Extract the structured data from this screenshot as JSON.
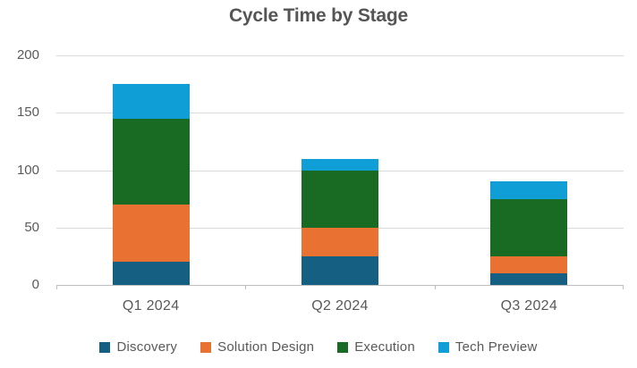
{
  "chart_data": {
    "type": "bar",
    "stacked": true,
    "title": "Cycle Time by Stage",
    "categories": [
      "Q1 2024",
      "Q2 2024",
      "Q3 2024"
    ],
    "series": [
      {
        "name": "Discovery",
        "color": "#156082",
        "values": [
          20,
          25,
          10
        ]
      },
      {
        "name": "Solution Design",
        "color": "#E97132",
        "values": [
          50,
          25,
          15
        ]
      },
      {
        "name": "Execution",
        "color": "#196B24",
        "values": [
          75,
          50,
          50
        ]
      },
      {
        "name": "Tech Preview",
        "color": "#0F9ED5",
        "values": [
          30,
          10,
          15
        ]
      }
    ],
    "totals": [
      175,
      110,
      90
    ],
    "y_ticks": [
      0,
      50,
      100,
      150,
      200
    ],
    "ylim": [
      0,
      200
    ],
    "xlabel": "",
    "ylabel": "",
    "grid": true,
    "legend_position": "bottom",
    "colors": {
      "background": "#FFFFFF",
      "gridline": "#D9D9D9",
      "axis_line": "#BFBFBF",
      "label_text": "#595959",
      "title_text": "#555555"
    }
  }
}
